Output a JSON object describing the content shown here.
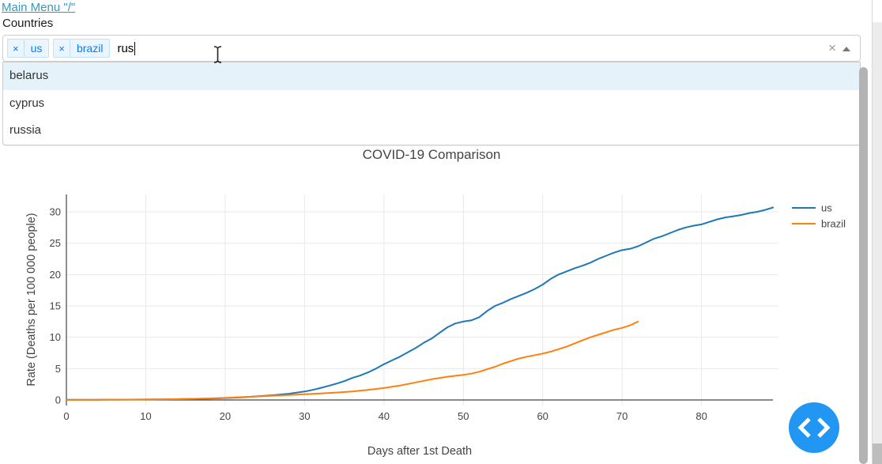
{
  "header": {
    "main_menu_link": "Main Menu \"/\"",
    "countries_label": "Countries"
  },
  "select": {
    "tags": [
      {
        "label": "us"
      },
      {
        "label": "brazil"
      }
    ],
    "remove_icon": "×",
    "input_value": "rus",
    "clear_icon": "×",
    "dropdown_arrow_icon": "up-triangle"
  },
  "dropdown": {
    "options": [
      {
        "label": "belarus",
        "highlighted": true
      },
      {
        "label": "cyprus",
        "highlighted": false
      },
      {
        "label": "russia",
        "highlighted": false
      }
    ]
  },
  "chart_data": {
    "type": "line",
    "title": "COVID-19 Comparison",
    "xlabel": "Days after 1st Death",
    "ylabel": "Rate (Deaths per 100 000 people)",
    "xlim": [
      0,
      90
    ],
    "ylim": [
      0,
      32
    ],
    "xticks": [
      0,
      10,
      20,
      30,
      40,
      50,
      60,
      70,
      80
    ],
    "yticks": [
      0,
      5,
      10,
      15,
      20,
      25,
      30
    ],
    "grid": true,
    "legend_position": "top-right-outside",
    "series": [
      {
        "name": "us",
        "color": "#1f77b4",
        "points": [
          [
            0,
            0.02
          ],
          [
            4,
            0.04
          ],
          [
            8,
            0.06
          ],
          [
            12,
            0.1
          ],
          [
            15,
            0.15
          ],
          [
            18,
            0.22
          ],
          [
            20,
            0.3
          ],
          [
            22,
            0.42
          ],
          [
            24,
            0.58
          ],
          [
            26,
            0.76
          ],
          [
            28,
            1.0
          ],
          [
            30,
            1.35
          ],
          [
            31,
            1.6
          ],
          [
            32,
            1.9
          ],
          [
            33,
            2.25
          ],
          [
            34,
            2.6
          ],
          [
            35,
            3.0
          ],
          [
            36,
            3.5
          ],
          [
            37,
            3.9
          ],
          [
            38,
            4.4
          ],
          [
            39,
            5.0
          ],
          [
            40,
            5.7
          ],
          [
            41,
            6.3
          ],
          [
            42,
            6.9
          ],
          [
            43,
            7.6
          ],
          [
            44,
            8.3
          ],
          [
            45,
            9.1
          ],
          [
            46,
            9.8
          ],
          [
            47,
            10.7
          ],
          [
            48,
            11.6
          ],
          [
            49,
            12.2
          ],
          [
            50,
            12.5
          ],
          [
            51,
            12.7
          ],
          [
            52,
            13.2
          ],
          [
            53,
            14.2
          ],
          [
            54,
            15.0
          ],
          [
            55,
            15.5
          ],
          [
            56,
            16.1
          ],
          [
            57,
            16.6
          ],
          [
            58,
            17.1
          ],
          [
            59,
            17.7
          ],
          [
            60,
            18.4
          ],
          [
            61,
            19.3
          ],
          [
            62,
            20.0
          ],
          [
            63,
            20.5
          ],
          [
            64,
            21.0
          ],
          [
            65,
            21.4
          ],
          [
            66,
            21.9
          ],
          [
            67,
            22.5
          ],
          [
            68,
            23.0
          ],
          [
            69,
            23.5
          ],
          [
            70,
            23.9
          ],
          [
            71,
            24.1
          ],
          [
            72,
            24.5
          ],
          [
            73,
            25.1
          ],
          [
            74,
            25.7
          ],
          [
            75,
            26.1
          ],
          [
            76,
            26.6
          ],
          [
            77,
            27.1
          ],
          [
            78,
            27.5
          ],
          [
            79,
            27.8
          ],
          [
            80,
            28.0
          ],
          [
            81,
            28.4
          ],
          [
            82,
            28.8
          ],
          [
            83,
            29.1
          ],
          [
            84,
            29.3
          ],
          [
            85,
            29.5
          ],
          [
            86,
            29.8
          ],
          [
            87,
            30.0
          ],
          [
            88,
            30.3
          ],
          [
            89,
            30.7
          ]
        ]
      },
      {
        "name": "brazil",
        "color": "#ff7f0e",
        "points": [
          [
            0,
            0.02
          ],
          [
            4,
            0.04
          ],
          [
            8,
            0.06
          ],
          [
            12,
            0.1
          ],
          [
            15,
            0.16
          ],
          [
            18,
            0.25
          ],
          [
            20,
            0.33
          ],
          [
            22,
            0.45
          ],
          [
            24,
            0.56
          ],
          [
            26,
            0.68
          ],
          [
            28,
            0.8
          ],
          [
            30,
            0.92
          ],
          [
            32,
            1.05
          ],
          [
            34,
            1.18
          ],
          [
            36,
            1.35
          ],
          [
            38,
            1.6
          ],
          [
            40,
            1.9
          ],
          [
            42,
            2.3
          ],
          [
            44,
            2.8
          ],
          [
            46,
            3.3
          ],
          [
            48,
            3.7
          ],
          [
            50,
            4.0
          ],
          [
            51,
            4.2
          ],
          [
            52,
            4.5
          ],
          [
            53,
            4.9
          ],
          [
            54,
            5.3
          ],
          [
            55,
            5.8
          ],
          [
            56,
            6.2
          ],
          [
            57,
            6.6
          ],
          [
            58,
            6.9
          ],
          [
            59,
            7.15
          ],
          [
            60,
            7.4
          ],
          [
            61,
            7.7
          ],
          [
            62,
            8.1
          ],
          [
            63,
            8.5
          ],
          [
            64,
            9.0
          ],
          [
            65,
            9.5
          ],
          [
            66,
            10.0
          ],
          [
            67,
            10.4
          ],
          [
            68,
            10.8
          ],
          [
            69,
            11.2
          ],
          [
            70,
            11.5
          ],
          [
            71,
            11.9
          ],
          [
            72,
            12.5
          ]
        ]
      }
    ]
  },
  "debug_button": {
    "icon": "code-chevrons"
  },
  "colors": {
    "link": "#3498bd",
    "tag_bg": "#ebf5ff",
    "tag_border": "#c2e0ff",
    "tag_text": "#007eff",
    "option_highlight": "#e6f2fa",
    "series_us": "#1f77b4",
    "series_brazil": "#ff7f0e",
    "debug_button": "#2196f3",
    "axis_text": "#444444",
    "gridline": "#e9e9e9",
    "zeroline": "#444444"
  }
}
